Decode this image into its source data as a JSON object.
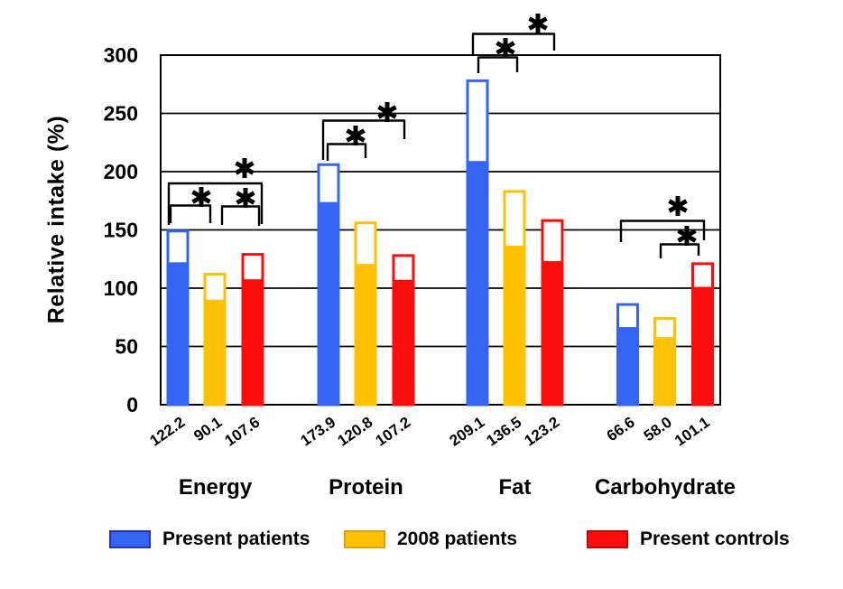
{
  "chart_data": {
    "type": "bar",
    "title": "",
    "ylabel": "Relative intake (%)",
    "xlabel": "",
    "ylim": [
      0,
      300
    ],
    "yticks": [
      0,
      50,
      100,
      150,
      200,
      250,
      300
    ],
    "grid": "horizontal-black-lines",
    "legend_position": "bottom",
    "categories": [
      "Energy",
      "Protein",
      "Fat",
      "Carbohydrate"
    ],
    "series": [
      {
        "name": "Present patients",
        "color": "#3464F2",
        "swatch_border": "#2A2AD4",
        "values": [
          122.2,
          173.9,
          209.1,
          66.6
        ],
        "upper_whisker": [
          149,
          206,
          278,
          86
        ]
      },
      {
        "name": "2008 patients",
        "color": "#FFC102",
        "swatch_border": "#E89C00",
        "values": [
          90.1,
          120.8,
          136.5,
          58.0
        ],
        "upper_whisker": [
          112,
          156,
          183,
          74
        ]
      },
      {
        "name": "Present controls",
        "color": "#FA0D0A",
        "swatch_border": "#D00000",
        "values": [
          107.6,
          107.2,
          123.2,
          101.1
        ],
        "upper_whisker": [
          129,
          128,
          158,
          121
        ]
      }
    ],
    "bar_value_labels": [
      [
        "122.2",
        "90.1",
        "107.6"
      ],
      [
        "173.9",
        "120.8",
        "107.2"
      ],
      [
        "209.1",
        "136.5",
        "123.2"
      ],
      [
        "66.6",
        "58.0",
        "101.1"
      ]
    ],
    "significance": [
      {
        "group": "Energy",
        "between": [
          "Present patients",
          "2008 patients"
        ],
        "symbol": "*"
      },
      {
        "group": "Energy",
        "between": [
          "2008 patients",
          "Present controls"
        ],
        "symbol": "*"
      },
      {
        "group": "Energy",
        "between": [
          "Present patients",
          "Present controls"
        ],
        "symbol": "*"
      },
      {
        "group": "Protein",
        "between": [
          "Present patients",
          "2008 patients"
        ],
        "symbol": "*"
      },
      {
        "group": "Protein",
        "between": [
          "Present patients",
          "Present controls"
        ],
        "symbol": "*"
      },
      {
        "group": "Fat",
        "between": [
          "Present patients",
          "2008 patients"
        ],
        "symbol": "*"
      },
      {
        "group": "Fat",
        "between": [
          "Present patients",
          "Present controls"
        ],
        "symbol": "*"
      },
      {
        "group": "Carbohydrate",
        "between": [
          "Present patients",
          "Present controls"
        ],
        "symbol": "*"
      },
      {
        "group": "Carbohydrate",
        "between": [
          "2008 patients",
          "Present controls"
        ],
        "symbol": "*"
      }
    ],
    "axis_color": "#000000",
    "text_color": "#000000"
  }
}
